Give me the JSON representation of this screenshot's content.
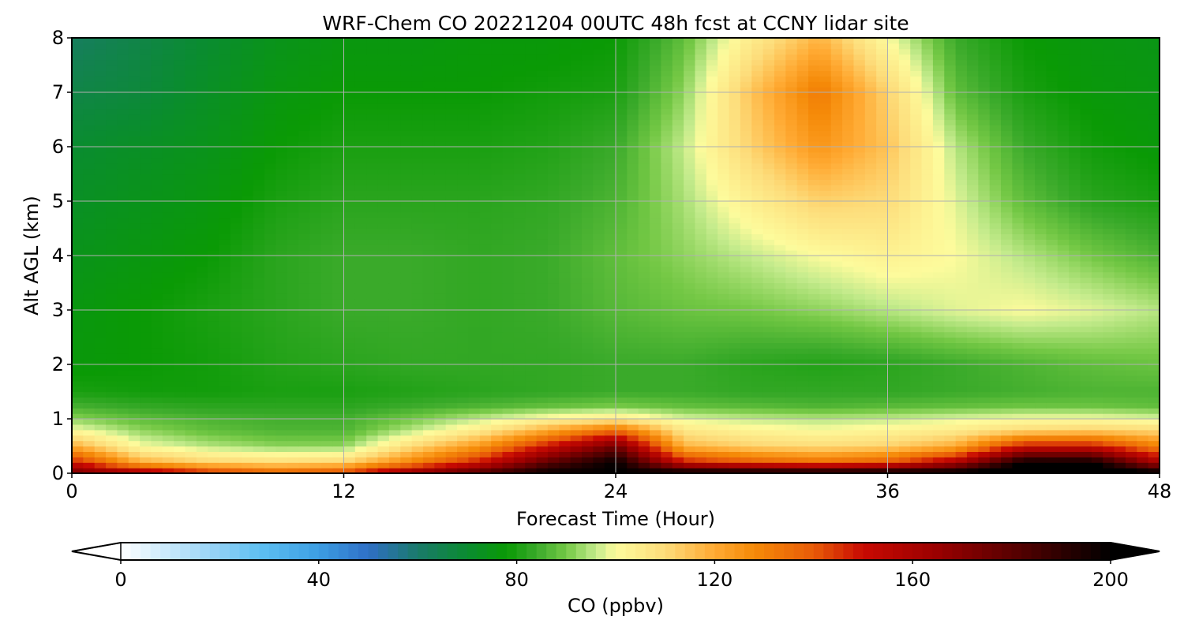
{
  "chart_data": {
    "type": "heatmap",
    "title": "WRF-Chem CO  20221204 00UTC 48h fcst at CCNY lidar site",
    "xlabel": "Forecast Time (Hour)",
    "ylabel": "Alt AGL (km)",
    "xlim": [
      0,
      48
    ],
    "ylim": [
      0,
      8
    ],
    "x_ticks": [
      "0",
      "12",
      "24",
      "36",
      "48"
    ],
    "y_ticks": [
      "0",
      "1",
      "2",
      "3",
      "4",
      "5",
      "6",
      "7",
      "8"
    ],
    "grid": true,
    "x": [
      0,
      3,
      6,
      9,
      12,
      15,
      18,
      21,
      24,
      27,
      30,
      33,
      36,
      39,
      42,
      45,
      48
    ],
    "y": [
      0,
      0.2,
      0.5,
      0.8,
      1,
      1.25,
      1.5,
      2,
      3,
      4,
      5,
      6,
      7,
      8
    ],
    "z": [
      [
        175,
        165,
        150,
        140,
        145,
        170,
        185,
        200,
        200,
        205,
        205,
        205,
        205,
        205,
        210,
        210,
        205
      ],
      [
        150,
        120,
        112,
        110,
        112,
        130,
        150,
        180,
        200,
        150,
        140,
        135,
        140,
        160,
        200,
        200,
        160
      ],
      [
        120,
        100,
        95,
        92,
        92,
        110,
        125,
        150,
        175,
        118,
        112,
        110,
        112,
        120,
        150,
        150,
        130
      ],
      [
        100,
        92,
        88,
        86,
        86,
        95,
        105,
        120,
        135,
        106,
        102,
        100,
        102,
        105,
        110,
        112,
        110
      ],
      [
        92,
        88,
        86,
        85,
        85,
        90,
        96,
        102,
        106,
        98,
        96,
        95,
        96,
        98,
        100,
        100,
        98
      ],
      [
        85,
        83,
        82,
        82,
        82,
        84,
        86,
        88,
        90,
        88,
        87,
        86,
        87,
        88,
        89,
        89,
        88
      ],
      [
        80,
        79,
        79,
        80,
        80,
        81,
        82,
        83,
        84,
        84,
        83,
        83,
        83,
        84,
        85,
        86,
        86
      ],
      [
        77,
        78,
        79,
        81,
        82,
        83,
        83,
        83,
        84,
        84,
        82,
        81,
        82,
        84,
        86,
        88,
        89
      ],
      [
        76,
        78,
        80,
        82,
        84,
        84,
        83,
        84,
        87,
        89,
        90,
        92,
        95,
        98,
        100,
        98,
        95
      ],
      [
        74,
        76,
        78,
        82,
        84,
        84,
        83,
        84,
        88,
        92,
        96,
        100,
        103,
        100,
        95,
        90,
        86
      ],
      [
        72,
        74,
        76,
        80,
        82,
        82,
        82,
        83,
        86,
        94,
        104,
        112,
        110,
        98,
        88,
        82,
        80
      ],
      [
        70,
        72,
        74,
        78,
        80,
        80,
        80,
        81,
        84,
        96,
        112,
        125,
        115,
        95,
        84,
        79,
        77
      ],
      [
        66,
        68,
        72,
        76,
        78,
        78,
        78,
        79,
        80,
        92,
        115,
        132,
        112,
        88,
        80,
        77,
        76
      ],
      [
        62,
        66,
        70,
        74,
        76,
        76,
        77,
        77,
        78,
        88,
        105,
        118,
        100,
        84,
        78,
        76,
        75
      ]
    ],
    "colorbar": {
      "label": "CO  (ppbv)",
      "min": 0,
      "max": 200,
      "ticks": [
        "0",
        "40",
        "80",
        "120",
        "160",
        "200"
      ],
      "extend": "both",
      "colors": [
        [
          0,
          "#ffffff"
        ],
        [
          10,
          "#c6e8fa"
        ],
        [
          20,
          "#8fd0f5"
        ],
        [
          28,
          "#5ec0f2"
        ],
        [
          40,
          "#3c9ee3"
        ],
        [
          50,
          "#2f6fc6"
        ],
        [
          60,
          "#1a7a6a"
        ],
        [
          70,
          "#0a8c30"
        ],
        [
          78,
          "#0a9a05"
        ],
        [
          84,
          "#3aaa2a"
        ],
        [
          90,
          "#74c845"
        ],
        [
          96,
          "#c4eb8c"
        ],
        [
          100,
          "#fdfb9c"
        ],
        [
          110,
          "#fddc7a"
        ],
        [
          120,
          "#ffaa33"
        ],
        [
          128,
          "#f58a08"
        ],
        [
          140,
          "#e85b08"
        ],
        [
          150,
          "#c80a02"
        ],
        [
          165,
          "#9a0000"
        ],
        [
          180,
          "#5a0000"
        ],
        [
          200,
          "#000000"
        ]
      ]
    }
  }
}
